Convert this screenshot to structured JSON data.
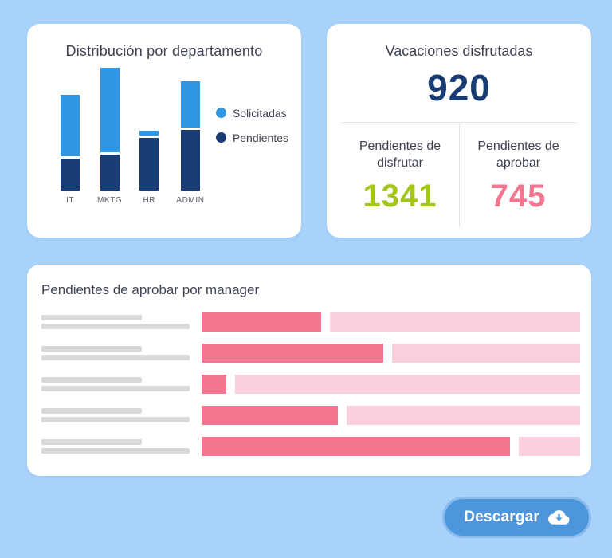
{
  "colors": {
    "page_bg": "#A9D2FA",
    "card_bg": "#FFFFFF",
    "text": "#3F4254",
    "navy": "#1A3C74",
    "light_blue": "#2E96E3",
    "green": "#A3C618",
    "pink": "#F4758F",
    "pink_light": "#F9CFDC",
    "gray": "#D9D9D9",
    "divider": "#E4E4E8",
    "button_bg": "#4D96DC",
    "button_border": "#8ABBEE"
  },
  "department_card": {
    "title": "Distribución por departamento",
    "chart_data": {
      "type": "bar",
      "stacked": true,
      "categories": [
        "IT",
        "MKTG",
        "HR",
        "ADMIN"
      ],
      "series": [
        {
          "name": "Solicitadas",
          "color_key": "light_blue",
          "values": [
            77,
            106,
            6,
            58
          ]
        },
        {
          "name": "Pendientes",
          "color_key": "navy",
          "values": [
            40,
            45,
            66,
            76
          ]
        }
      ],
      "title": "Distribución por departamento",
      "xlabel": "",
      "ylabel": "",
      "legend_position": "right",
      "grid": false,
      "note": "no axis scale shown; values are relative units estimated from bar heights"
    }
  },
  "summary_card": {
    "title": "Vacaciones disfrutadas",
    "total": "920",
    "kpis": [
      {
        "label": "Pendientes de disfrutar",
        "value": "1341",
        "color_key": "green"
      },
      {
        "label": "Pendientes de aprobar",
        "value": "745",
        "color_key": "pink"
      }
    ]
  },
  "manager_card": {
    "title": "Pendientes de aprobar por manager",
    "chart_data": {
      "type": "bar",
      "orientation": "horizontal",
      "title": "Pendientes de aprobar por manager",
      "categories": [
        "manager-1",
        "manager-2",
        "manager-3",
        "manager-4",
        "manager-5"
      ],
      "filled_pct": [
        31.6,
        47.9,
        6.5,
        35.9,
        81.4
      ],
      "track_pct": 100,
      "note": "manager names are redacted gray placeholder lines; dark pink = filled portion, pale pink = remainder"
    }
  },
  "download_button": {
    "label": "Descargar",
    "icon": "cloud-download-icon"
  }
}
